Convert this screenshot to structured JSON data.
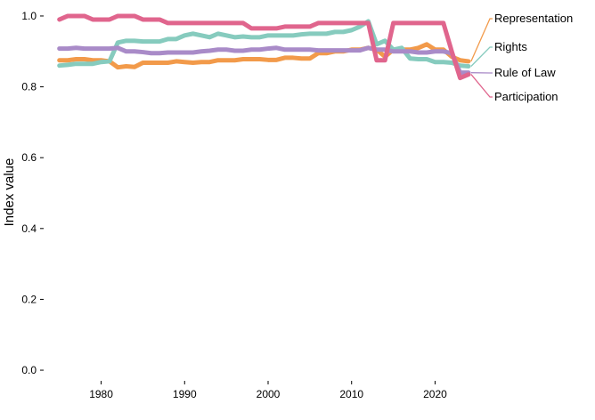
{
  "chart_data": {
    "type": "line",
    "ylabel": "Index value",
    "xlabel": "",
    "xlim": [
      1974.5,
      2025.5
    ],
    "ylim": [
      -0.02,
      1.02
    ],
    "x_ticks": [
      1980,
      1990,
      2000,
      2010,
      2020
    ],
    "y_ticks": [
      "0.0",
      "0.2",
      "0.4",
      "0.6",
      "0.8",
      "1.0"
    ],
    "x": [
      1975,
      1976,
      1977,
      1978,
      1979,
      1980,
      1981,
      1982,
      1983,
      1984,
      1985,
      1986,
      1987,
      1988,
      1989,
      1990,
      1991,
      1992,
      1993,
      1994,
      1995,
      1996,
      1997,
      1998,
      1999,
      2000,
      2001,
      2002,
      2003,
      2004,
      2005,
      2006,
      2007,
      2008,
      2009,
      2010,
      2011,
      2012,
      2013,
      2014,
      2015,
      2016,
      2017,
      2018,
      2019,
      2020,
      2021,
      2022,
      2023,
      2024
    ],
    "series": [
      {
        "name": "Representation",
        "color": "#F29A4A",
        "values": [
          0.875,
          0.875,
          0.878,
          0.878,
          0.875,
          0.875,
          0.872,
          0.855,
          0.858,
          0.856,
          0.868,
          0.868,
          0.868,
          0.868,
          0.872,
          0.87,
          0.868,
          0.87,
          0.87,
          0.875,
          0.875,
          0.875,
          0.878,
          0.878,
          0.878,
          0.876,
          0.876,
          0.882,
          0.882,
          0.88,
          0.88,
          0.895,
          0.895,
          0.9,
          0.9,
          0.905,
          0.905,
          0.91,
          0.905,
          0.885,
          0.905,
          0.905,
          0.905,
          0.91,
          0.92,
          0.905,
          0.905,
          0.885,
          0.875,
          0.872
        ]
      },
      {
        "name": "Rights",
        "color": "#86CBBE",
        "values": [
          0.86,
          0.862,
          0.865,
          0.865,
          0.865,
          0.87,
          0.872,
          0.925,
          0.93,
          0.93,
          0.928,
          0.928,
          0.928,
          0.935,
          0.935,
          0.945,
          0.95,
          0.945,
          0.94,
          0.95,
          0.945,
          0.94,
          0.942,
          0.94,
          0.94,
          0.945,
          0.945,
          0.945,
          0.945,
          0.948,
          0.95,
          0.95,
          0.95,
          0.955,
          0.955,
          0.96,
          0.97,
          0.985,
          0.92,
          0.93,
          0.905,
          0.91,
          0.88,
          0.878,
          0.878,
          0.87,
          0.87,
          0.868,
          0.86,
          0.858
        ]
      },
      {
        "name": "Rule of Law",
        "color": "#A98BC8",
        "values": [
          0.908,
          0.908,
          0.91,
          0.908,
          0.908,
          0.908,
          0.908,
          0.91,
          0.9,
          0.9,
          0.898,
          0.895,
          0.895,
          0.897,
          0.897,
          0.897,
          0.897,
          0.9,
          0.902,
          0.905,
          0.905,
          0.902,
          0.902,
          0.905,
          0.905,
          0.908,
          0.91,
          0.905,
          0.905,
          0.905,
          0.905,
          0.903,
          0.903,
          0.903,
          0.903,
          0.903,
          0.903,
          0.91,
          0.905,
          0.905,
          0.9,
          0.9,
          0.9,
          0.897,
          0.897,
          0.9,
          0.9,
          0.895,
          0.84,
          0.84
        ]
      },
      {
        "name": "Participation",
        "color": "#E0658D",
        "values": [
          0.99,
          1.0,
          1.0,
          1.0,
          0.99,
          0.99,
          0.99,
          1.0,
          1.0,
          1.0,
          0.99,
          0.99,
          0.99,
          0.98,
          0.98,
          0.98,
          0.98,
          0.98,
          0.98,
          0.98,
          0.98,
          0.98,
          0.98,
          0.965,
          0.965,
          0.965,
          0.965,
          0.97,
          0.97,
          0.97,
          0.97,
          0.98,
          0.98,
          0.98,
          0.98,
          0.98,
          0.98,
          0.98,
          0.875,
          0.875,
          0.98,
          0.98,
          0.98,
          0.98,
          0.98,
          0.98,
          0.98,
          0.9,
          0.825,
          0.835
        ]
      }
    ],
    "legend": {
      "placement": "right",
      "entries": [
        "Representation",
        "Rights",
        "Rule of Law",
        "Participation"
      ]
    },
    "grid": false
  }
}
